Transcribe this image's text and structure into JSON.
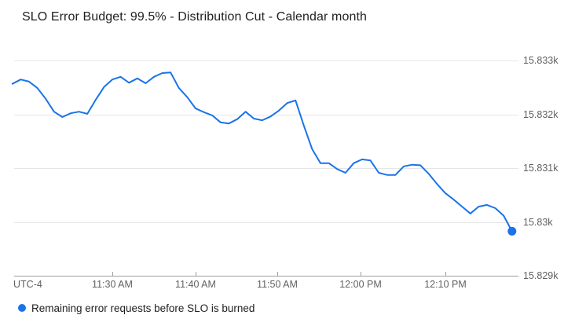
{
  "header": {
    "title": "SLO Error Budget: 99.5% - Distribution Cut - Calendar month"
  },
  "legend": {
    "marker_color": "#1a73e8",
    "label": "Remaining error requests before SLO is burned"
  },
  "colors": {
    "line": "#1a73e8",
    "end_dot": "#1a73e8",
    "gridline": "#e6e6e6",
    "axis": "#9e9e9e",
    "axis_text": "#616161",
    "title_text": "#212121",
    "legend_text": "#202124",
    "background": "#ffffff"
  },
  "chart_data": {
    "type": "line",
    "title": "SLO Error Budget: 99.5% - Distribution Cut - Calendar month",
    "timezone_label": "UTC-4",
    "x_ticks": [
      "11:30 AM",
      "11:40 AM",
      "11:50 AM",
      "12:00 PM",
      "12:10 PM"
    ],
    "y_ticks": [
      "15.833k",
      "15.832k",
      "15.831k",
      "15.83k",
      "15.829k"
    ],
    "y_tick_values": [
      15833,
      15832,
      15831,
      15830,
      15829
    ],
    "ylim": [
      15829,
      15833.2
    ],
    "x_range": [
      "11:18 AM",
      "12:18 PM"
    ],
    "grid": "horizontal-only",
    "legend_position": "bottom-left",
    "y_axis_side": "right",
    "end_point_marker": true,
    "series": [
      {
        "name": "Remaining error requests before SLO is burned",
        "color": "#1a73e8",
        "points": [
          [
            "11:18",
            15832.58
          ],
          [
            "11:19",
            15832.66
          ],
          [
            "11:20",
            15832.62
          ],
          [
            "11:21",
            15832.5
          ],
          [
            "11:22",
            15832.3
          ],
          [
            "11:23",
            15832.06
          ],
          [
            "11:24",
            15831.96
          ],
          [
            "11:25",
            15832.03
          ],
          [
            "11:26",
            15832.06
          ],
          [
            "11:27",
            15832.02
          ],
          [
            "11:28",
            15832.28
          ],
          [
            "11:29",
            15832.52
          ],
          [
            "11:30",
            15832.66
          ],
          [
            "11:31",
            15832.71
          ],
          [
            "11:32",
            15832.6
          ],
          [
            "11:33",
            15832.68
          ],
          [
            "11:34",
            15832.59
          ],
          [
            "11:35",
            15832.71
          ],
          [
            "11:36",
            15832.78
          ],
          [
            "11:37",
            15832.79
          ],
          [
            "11:38",
            15832.5
          ],
          [
            "11:39",
            15832.33
          ],
          [
            "11:40",
            15832.12
          ],
          [
            "11:41",
            15832.05
          ],
          [
            "11:42",
            15831.99
          ],
          [
            "11:43",
            15831.86
          ],
          [
            "11:44",
            15831.84
          ],
          [
            "11:45",
            15831.92
          ],
          [
            "11:46",
            15832.06
          ],
          [
            "11:47",
            15831.93
          ],
          [
            "11:48",
            15831.9
          ],
          [
            "11:49",
            15831.97
          ],
          [
            "11:50",
            15832.08
          ],
          [
            "11:51",
            15832.22
          ],
          [
            "11:52",
            15832.27
          ],
          [
            "11:53",
            15831.8
          ],
          [
            "11:54",
            15831.36
          ],
          [
            "11:55",
            15831.1
          ],
          [
            "11:56",
            15831.1
          ],
          [
            "11:57",
            15830.99
          ],
          [
            "11:58",
            15830.92
          ],
          [
            "11:59",
            15831.1
          ],
          [
            "12:00",
            15831.17
          ],
          [
            "12:01",
            15831.15
          ],
          [
            "12:02",
            15830.92
          ],
          [
            "12:03",
            15830.88
          ],
          [
            "12:04",
            15830.88
          ],
          [
            "12:05",
            15831.04
          ],
          [
            "12:06",
            15831.07
          ],
          [
            "12:07",
            15831.06
          ],
          [
            "12:08",
            15830.9
          ],
          [
            "12:09",
            15830.71
          ],
          [
            "12:10",
            15830.54
          ],
          [
            "12:11",
            15830.42
          ],
          [
            "12:12",
            15830.29
          ],
          [
            "12:13",
            15830.16
          ],
          [
            "12:14",
            15830.29
          ],
          [
            "12:15",
            15830.32
          ],
          [
            "12:16",
            15830.26
          ],
          [
            "12:17",
            15830.12
          ],
          [
            "12:18",
            15829.83
          ]
        ]
      }
    ]
  }
}
